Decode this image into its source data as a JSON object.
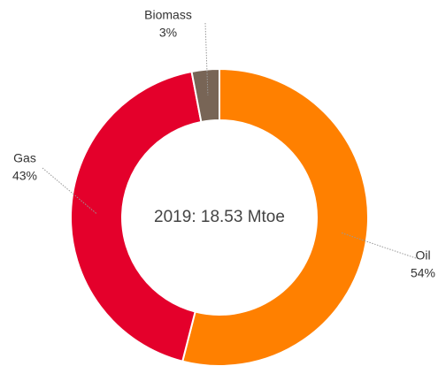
{
  "chart_data": {
    "type": "donut",
    "center_label": "2019: 18.53 Mtoe",
    "categories": [
      "Oil",
      "Gas",
      "Biomass"
    ],
    "values": [
      54,
      43,
      3
    ],
    "value_labels": [
      "54%",
      "43%",
      "3%"
    ],
    "colors": [
      "#ff8000",
      "#e4002b",
      "#786556"
    ]
  }
}
